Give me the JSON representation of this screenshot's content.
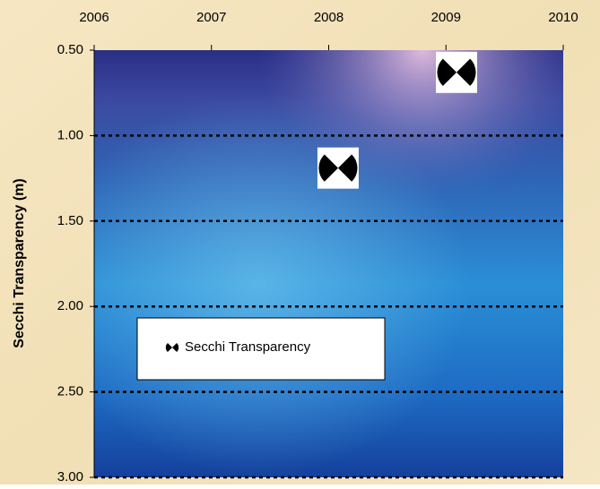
{
  "chart_data": {
    "type": "scatter",
    "y_label": "Secchi Transparency (m)",
    "series": [
      {
        "name": "Secchi Transparency",
        "x": [
          2008.08,
          2009.09
        ],
        "values": [
          1.19,
          0.63
        ]
      }
    ],
    "xlim": [
      2006,
      2010
    ],
    "xticks": [
      2006,
      2007,
      2008,
      2009,
      2010
    ],
    "ylim": [
      0.5,
      3.0
    ],
    "y_inverted": true,
    "yticks": [
      {
        "value": 0.5,
        "label": "0.50"
      },
      {
        "value": 1.0,
        "label": "1.00"
      },
      {
        "value": 1.5,
        "label": "1.50"
      },
      {
        "value": 2.0,
        "label": "2.00"
      },
      {
        "value": 2.5,
        "label": "2.50"
      },
      {
        "value": 3.0,
        "label": "3.00"
      }
    ],
    "grid": true,
    "legend": "lower left"
  }
}
